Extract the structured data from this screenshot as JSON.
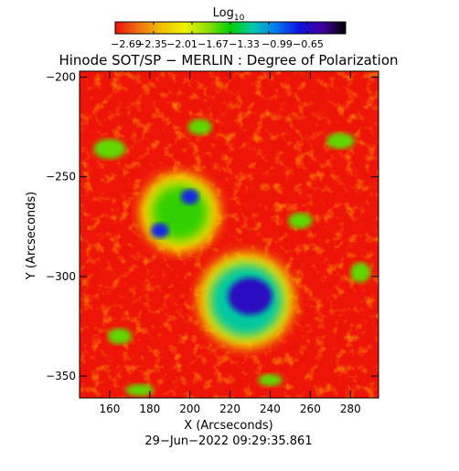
{
  "chart_data": {
    "type": "heatmap",
    "title": "Hinode SOT/SP − MERLIN : Degree of Polarization",
    "xlabel": "X (Arcseconds)",
    "ylabel": "Y (Arcseconds)",
    "date_label": "29−Jun−2022 09:29:35.861",
    "colorbar": {
      "label_base": "Log",
      "label_sub": "10",
      "ticks": [
        "−2.69",
        "−2.35",
        "−2.01",
        "−1.67",
        "−1.33",
        "−0.99",
        "−0.65"
      ],
      "range": [
        -2.69,
        -0.65
      ],
      "colors": [
        "#ee1010",
        "#f07010",
        "#f0c000",
        "#f0f000",
        "#90e000",
        "#00d000",
        "#00c8b0",
        "#0078f0",
        "#1010e0",
        "#4000a0",
        "#000000"
      ]
    },
    "x_ticks": [
      "160",
      "180",
      "200",
      "220",
      "240",
      "260",
      "280"
    ],
    "y_ticks": [
      "−200",
      "−250",
      "−300",
      "−350"
    ],
    "xlim": [
      145,
      294
    ],
    "ylim": [
      -361,
      -197
    ],
    "features": [
      {
        "name": "sunspot",
        "x": 230,
        "y": -310,
        "level": -0.75
      },
      {
        "name": "pore",
        "x": 200,
        "y": -260,
        "level": -1.2
      },
      {
        "name": "pore",
        "x": 185,
        "y": -277,
        "level": -1.3
      }
    ]
  }
}
